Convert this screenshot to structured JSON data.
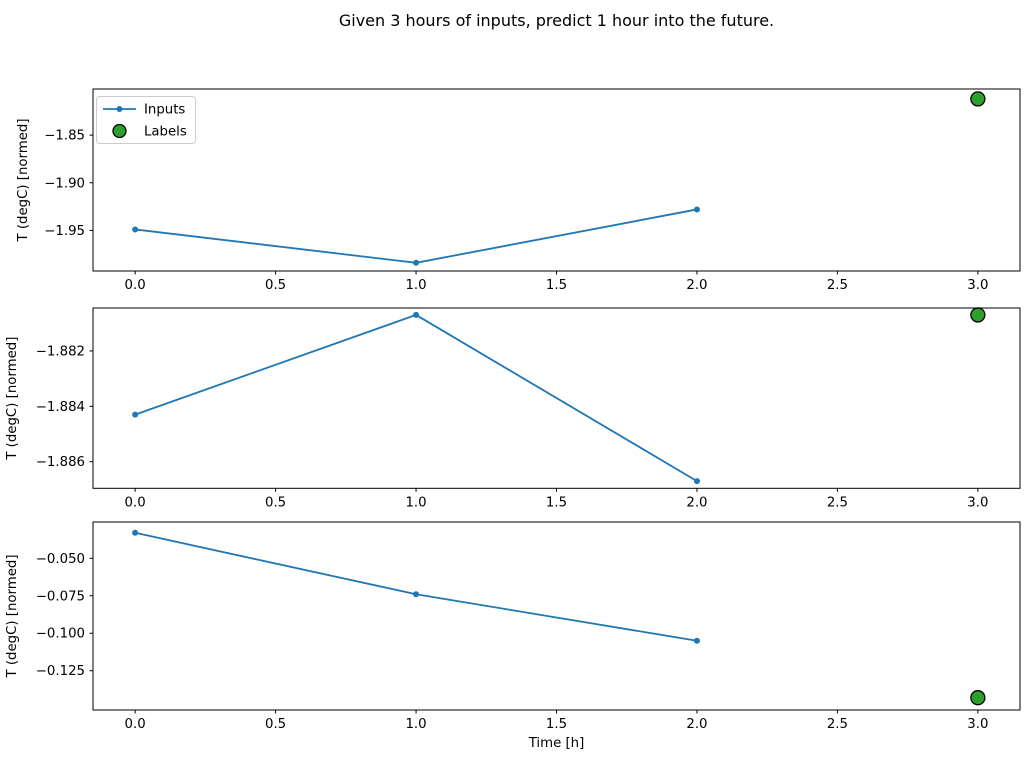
{
  "figure": {
    "title": "Given 3 hours of inputs, predict 1 hour into the future."
  },
  "chart_data": {
    "type": "line",
    "title": "Given 3 hours of inputs, predict 1 hour into the future.",
    "xlabel": "Time [h]",
    "ylabel": "T (degC) [normed]",
    "xlim": [
      -0.15,
      3.15
    ],
    "x_ticks": [
      0.0,
      0.5,
      1.0,
      1.5,
      2.0,
      2.5,
      3.0
    ],
    "x_tick_labels": [
      "0.0",
      "0.5",
      "1.0",
      "1.5",
      "2.0",
      "2.5",
      "3.0"
    ],
    "grid": false,
    "legend": {
      "position": "upper left of subplot 1",
      "entries": [
        {
          "label": "Inputs",
          "type": "line-with-marker",
          "color": "#1f77b4"
        },
        {
          "label": "Labels",
          "type": "circle-marker",
          "fill": "#2ca02c",
          "edge": "#000000"
        }
      ]
    },
    "colors": {
      "inputs_line": "#1f77b4",
      "labels_fill": "#2ca02c",
      "labels_edge": "#000000",
      "axis": "#000000",
      "legend_border": "#cccccc"
    },
    "subplots": [
      {
        "ylabel": "T (degC) [normed]",
        "y_ticks": [
          -1.85,
          -1.9,
          -1.95
        ],
        "y_tick_labels": [
          "−1.85",
          "−1.90",
          "−1.95"
        ],
        "ylim": [
          -1.9926,
          -1.8016
        ],
        "series": [
          {
            "name": "Inputs",
            "x": [
              0,
              1,
              2
            ],
            "y": [
              -1.949,
              -1.984,
              -1.928
            ]
          },
          {
            "name": "Labels",
            "x": [
              3
            ],
            "y": [
              -1.812
            ]
          }
        ]
      },
      {
        "ylabel": "T (degC) [normed]",
        "y_ticks": [
          -1.882,
          -1.884,
          -1.886
        ],
        "y_tick_labels": [
          "−1.882",
          "−1.884",
          "−1.886"
        ],
        "ylim": [
          -1.88696,
          -1.88045
        ],
        "series": [
          {
            "name": "Inputs",
            "x": [
              0,
              1,
              2
            ],
            "y": [
              -1.8843,
              -1.8807,
              -1.8867
            ]
          },
          {
            "name": "Labels",
            "x": [
              3
            ],
            "y": [
              -1.8807
            ]
          }
        ]
      },
      {
        "ylabel": "T (degC) [normed]",
        "y_ticks": [
          -0.05,
          -0.075,
          -0.1,
          -0.125
        ],
        "y_tick_labels": [
          "−0.050",
          "−0.075",
          "−0.100",
          "−0.125"
        ],
        "ylim": [
          -0.1512,
          -0.0258
        ],
        "series": [
          {
            "name": "Inputs",
            "x": [
              0,
              1,
              2
            ],
            "y": [
              -0.033,
              -0.074,
              -0.105
            ]
          },
          {
            "name": "Labels",
            "x": [
              3
            ],
            "y": [
              -0.143
            ]
          }
        ]
      }
    ]
  }
}
